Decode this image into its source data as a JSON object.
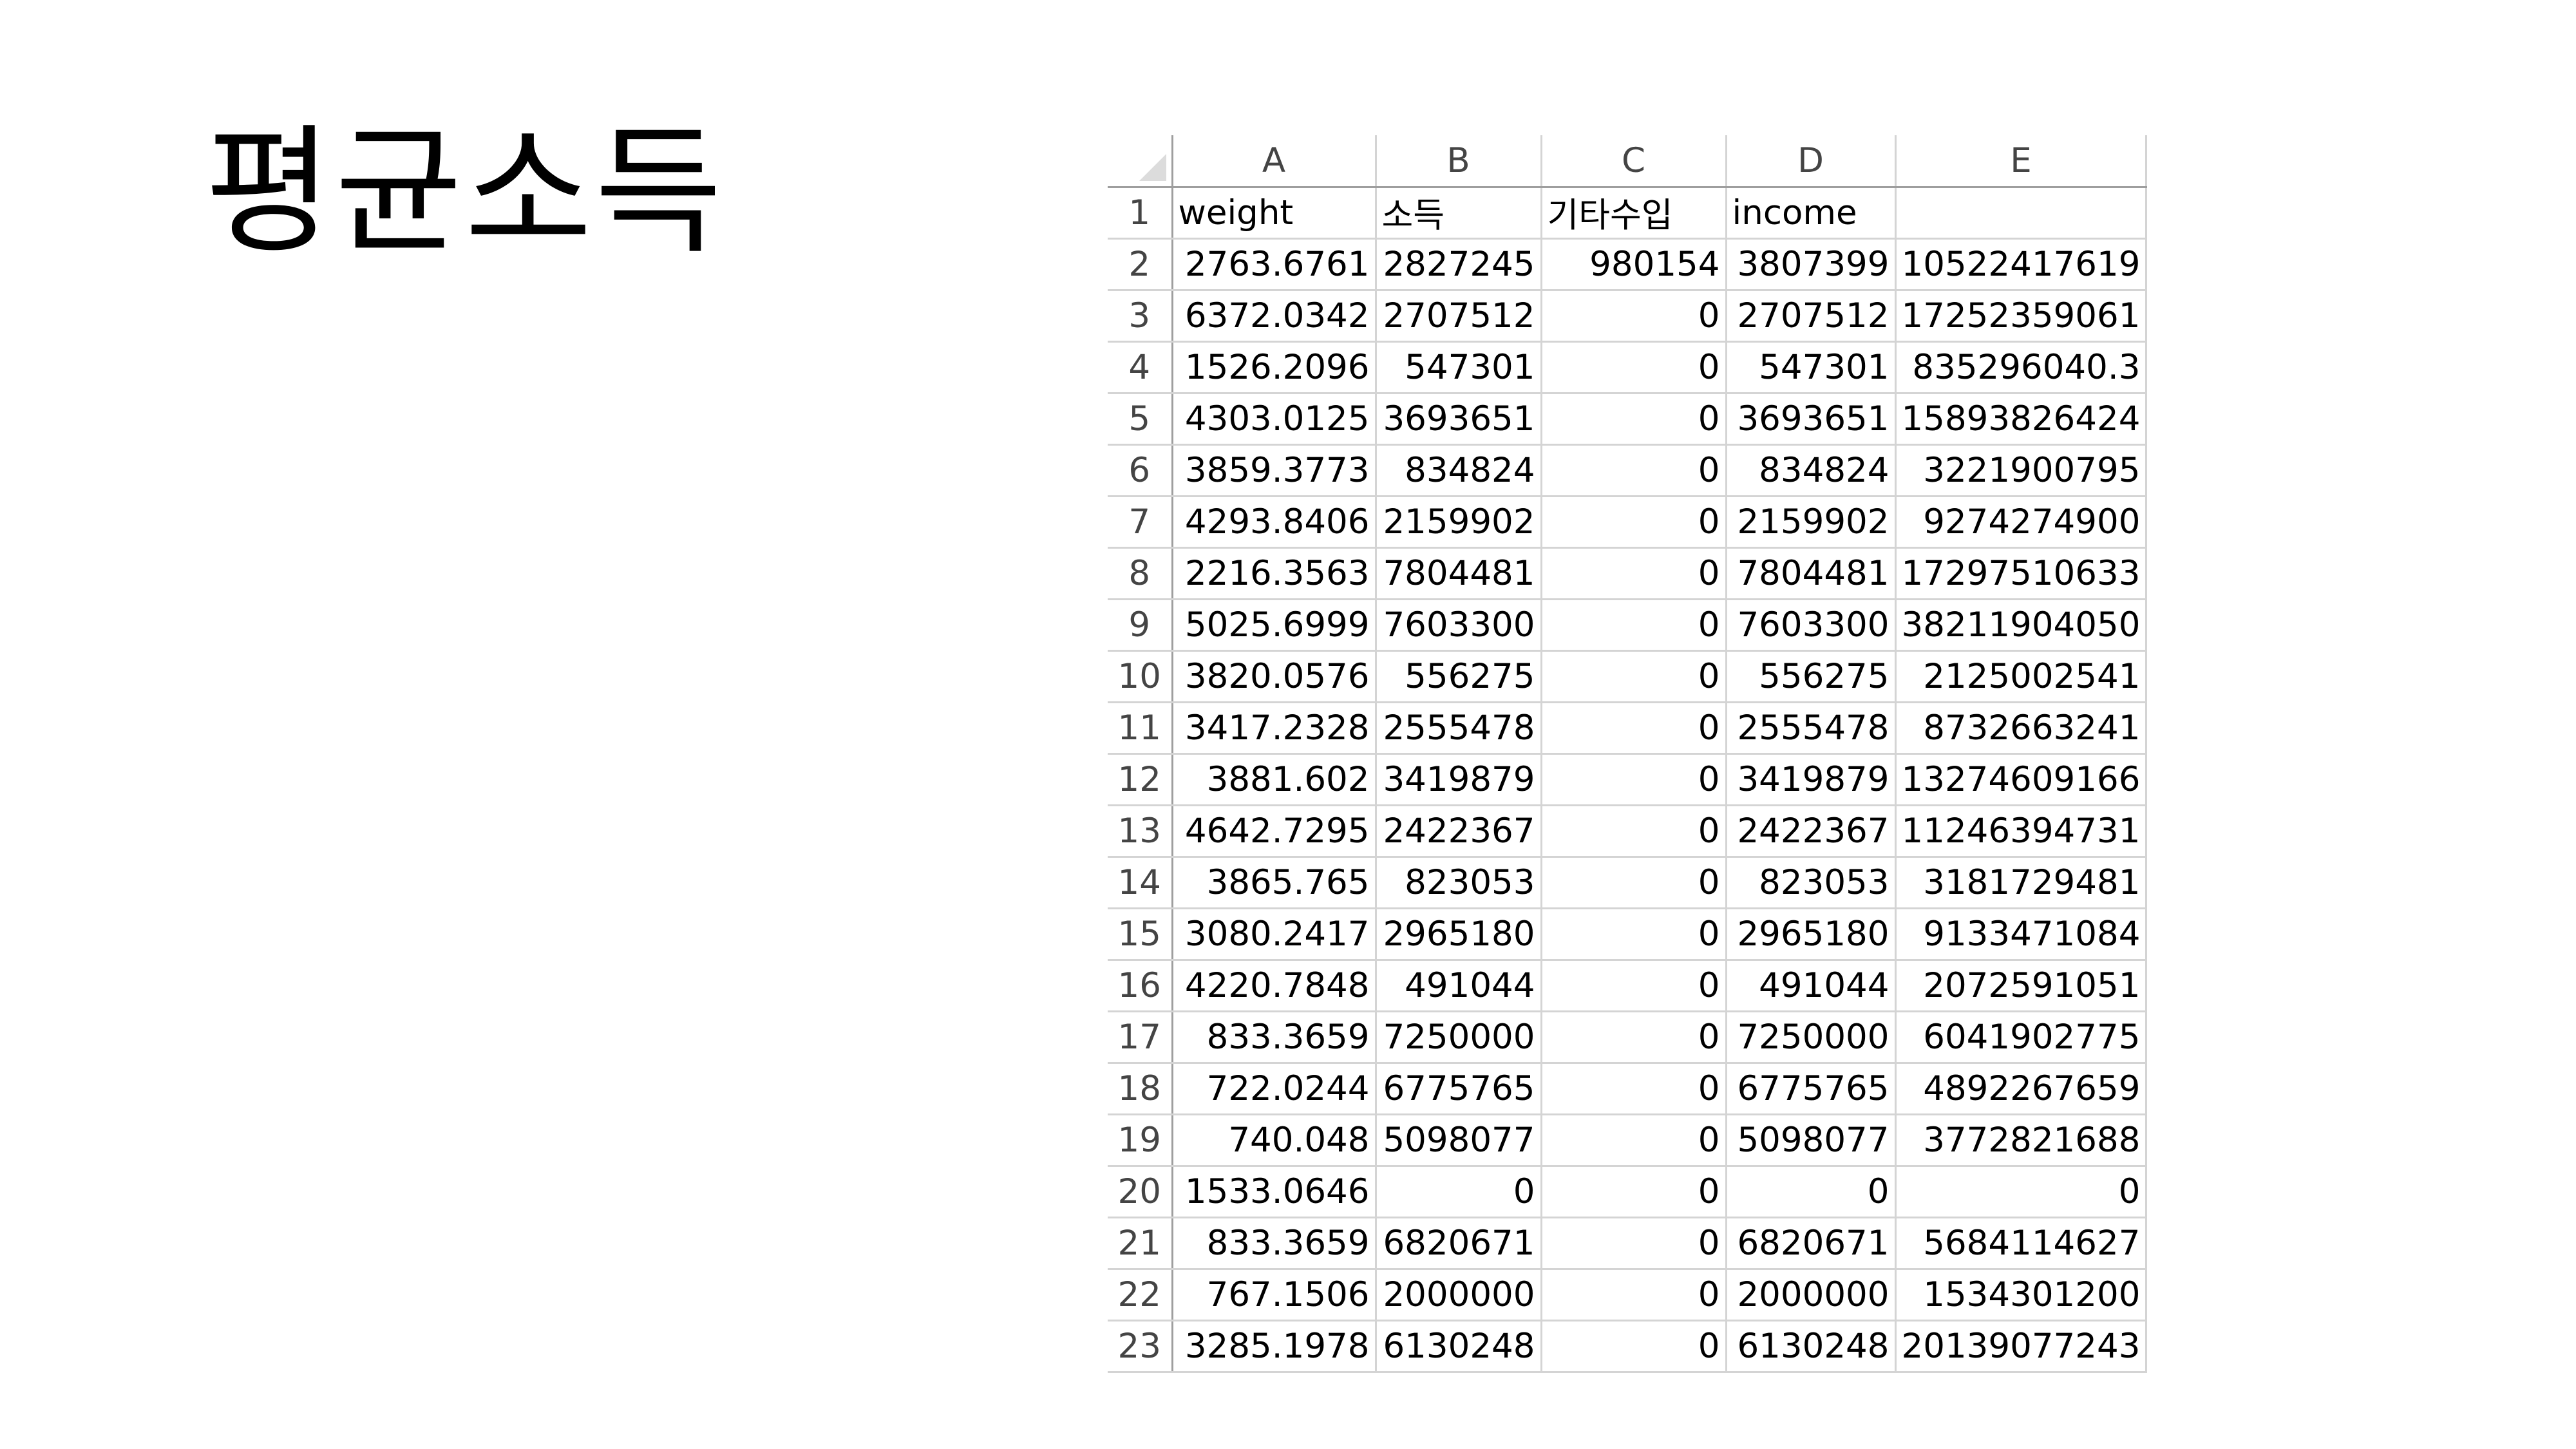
{
  "slide": {
    "title": "평균소득"
  },
  "sheet": {
    "column_letters": [
      "A",
      "B",
      "C",
      "D",
      "E"
    ],
    "header_row": {
      "row_number": "1",
      "cells": [
        "weight",
        "소득",
        "기타수입",
        "income",
        ""
      ]
    },
    "rows": [
      {
        "num": "2",
        "cells": [
          "2763.6761",
          "2827245",
          "980154",
          "3807399",
          "10522417619"
        ]
      },
      {
        "num": "3",
        "cells": [
          "6372.0342",
          "2707512",
          "0",
          "2707512",
          "17252359061"
        ]
      },
      {
        "num": "4",
        "cells": [
          "1526.2096",
          "547301",
          "0",
          "547301",
          "835296040.3"
        ]
      },
      {
        "num": "5",
        "cells": [
          "4303.0125",
          "3693651",
          "0",
          "3693651",
          "15893826424"
        ]
      },
      {
        "num": "6",
        "cells": [
          "3859.3773",
          "834824",
          "0",
          "834824",
          "3221900795"
        ]
      },
      {
        "num": "7",
        "cells": [
          "4293.8406",
          "2159902",
          "0",
          "2159902",
          "9274274900"
        ]
      },
      {
        "num": "8",
        "cells": [
          "2216.3563",
          "7804481",
          "0",
          "7804481",
          "17297510633"
        ]
      },
      {
        "num": "9",
        "cells": [
          "5025.6999",
          "7603300",
          "0",
          "7603300",
          "38211904050"
        ]
      },
      {
        "num": "10",
        "cells": [
          "3820.0576",
          "556275",
          "0",
          "556275",
          "2125002541"
        ]
      },
      {
        "num": "11",
        "cells": [
          "3417.2328",
          "2555478",
          "0",
          "2555478",
          "8732663241"
        ]
      },
      {
        "num": "12",
        "cells": [
          "3881.602",
          "3419879",
          "0",
          "3419879",
          "13274609166"
        ]
      },
      {
        "num": "13",
        "cells": [
          "4642.7295",
          "2422367",
          "0",
          "2422367",
          "11246394731"
        ]
      },
      {
        "num": "14",
        "cells": [
          "3865.765",
          "823053",
          "0",
          "823053",
          "3181729481"
        ]
      },
      {
        "num": "15",
        "cells": [
          "3080.2417",
          "2965180",
          "0",
          "2965180",
          "9133471084"
        ]
      },
      {
        "num": "16",
        "cells": [
          "4220.7848",
          "491044",
          "0",
          "491044",
          "2072591051"
        ]
      },
      {
        "num": "17",
        "cells": [
          "833.3659",
          "7250000",
          "0",
          "7250000",
          "6041902775"
        ]
      },
      {
        "num": "18",
        "cells": [
          "722.0244",
          "6775765",
          "0",
          "6775765",
          "4892267659"
        ]
      },
      {
        "num": "19",
        "cells": [
          "740.048",
          "5098077",
          "0",
          "5098077",
          "3772821688"
        ]
      },
      {
        "num": "20",
        "cells": [
          "1533.0646",
          "0",
          "0",
          "0",
          "0"
        ]
      },
      {
        "num": "21",
        "cells": [
          "833.3659",
          "6820671",
          "0",
          "6820671",
          "5684114627"
        ]
      },
      {
        "num": "22",
        "cells": [
          "767.1506",
          "2000000",
          "0",
          "2000000",
          "1534301200"
        ]
      },
      {
        "num": "23",
        "cells": [
          "3285.1978",
          "6130248",
          "0",
          "6130248",
          "20139077243"
        ]
      }
    ]
  }
}
